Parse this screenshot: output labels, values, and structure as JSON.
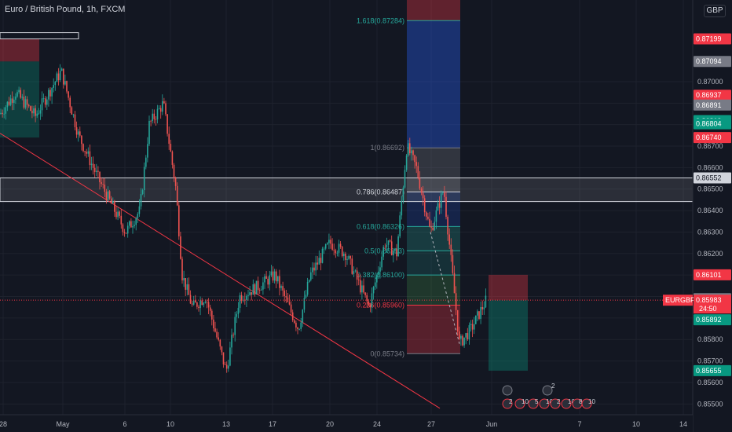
{
  "header": {
    "title": "Euro / British Pound, 1h, FXCM",
    "currency": "GBP"
  },
  "chart_data": {
    "type": "candlestick",
    "symbol": "EURGBP",
    "y_range": [
      0.8545,
      0.8738
    ],
    "y_ticks": [
      "0.87000",
      "0.86900",
      "0.86800",
      "0.86700",
      "0.86600",
      "0.86500",
      "0.86400",
      "0.86300",
      "0.86200",
      "0.86100",
      "0.86000",
      "0.85900",
      "0.85800",
      "0.85700",
      "0.85600",
      "0.85500"
    ],
    "x_ticks": [
      "28",
      "May",
      "6",
      "10",
      "13",
      "17",
      "20",
      "24",
      "27",
      "Jun",
      "7",
      "10",
      "14"
    ],
    "price_tags": [
      {
        "text": "0.87199",
        "price": 0.87199,
        "color": "#f23645"
      },
      {
        "text": "0.87094",
        "price": 0.87094,
        "color": "#787b86"
      },
      {
        "text": "0.86937",
        "price": 0.86937,
        "color": "#f23645"
      },
      {
        "text": "0.86891",
        "price": 0.86891,
        "color": "#787b86"
      },
      {
        "text": "0.86819",
        "price": 0.86819,
        "color": "#089981"
      },
      {
        "text": "0.86804",
        "price": 0.86804,
        "color": "#089981"
      },
      {
        "text": "0.86740",
        "price": 0.8674,
        "color": "#f23645"
      },
      {
        "text": "0.86552",
        "price": 0.86552,
        "color": "#d1d4dc"
      },
      {
        "text": "0.86101",
        "price": 0.86101,
        "color": "#f23645"
      },
      {
        "text": "0.85990",
        "price": 0.8599,
        "color": "#787b86"
      },
      {
        "text": "0.85892",
        "price": 0.85892,
        "color": "#089981"
      },
      {
        "text": "0.85655",
        "price": 0.85655,
        "color": "#089981"
      }
    ],
    "current": {
      "symbol": "EURGBP",
      "price_text": "0.85983",
      "countdown": "24:50",
      "price": 0.85983,
      "color": "#f23645"
    },
    "fib_levels": [
      {
        "label": "1.618(0.87284)",
        "price": 0.87284,
        "color": "#26a69a"
      },
      {
        "label": "1(0.86692)",
        "price": 0.86692,
        "color": "#787b86"
      },
      {
        "label": "0.786(0.86487)",
        "price": 0.86487,
        "color": "#d1d4dc"
      },
      {
        "label": "0.618(0.86326)",
        "price": 0.86326,
        "color": "#26a69a"
      },
      {
        "label": "0.5(0.86213)",
        "price": 0.86213,
        "color": "#26a69a"
      },
      {
        "label": "0.382(0.86100)",
        "price": 0.861,
        "color": "#26a69a"
      },
      {
        "label": "0.236(0.85960)",
        "price": 0.8596,
        "color": "#f23645"
      },
      {
        "label": "0(0.85734)",
        "price": 0.85734,
        "color": "#787b86"
      }
    ],
    "resistance_zone": [
      0.86442,
      0.86552
    ],
    "events": {
      "top": [
        "2"
      ],
      "bottom": [
        "2",
        "10",
        "5",
        "10",
        "2",
        "10",
        "8",
        "10"
      ]
    }
  },
  "colors": {
    "up": "#26a69a",
    "down": "#ef5350",
    "bg": "#131722",
    "grid": "#1e222d",
    "text": "#b2b5be"
  }
}
